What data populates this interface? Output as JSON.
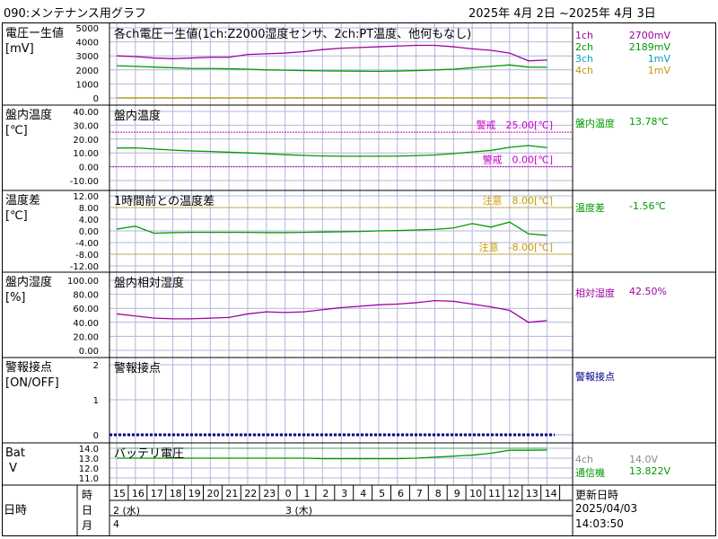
{
  "header": {
    "title": "090:メンテナンス用グラフ",
    "range": "2025年 4月 2日 ~2025年 4月 3日"
  },
  "time_axis": {
    "row_label": "時",
    "hours": [
      "15",
      "16",
      "17",
      "18",
      "19",
      "20",
      "21",
      "22",
      "23",
      "0",
      "1",
      "2",
      "3",
      "4",
      "5",
      "6",
      "7",
      "8",
      "9",
      "10",
      "11",
      "12",
      "13",
      "14"
    ],
    "day_row_label": "日",
    "days": [
      "2 (水)",
      "3 (木)"
    ],
    "month_row_label": "月",
    "month": "4",
    "row_title": "日時"
  },
  "updated": {
    "label": "更新日時",
    "date": "2025/04/03",
    "time": "14:03:50"
  },
  "colors": {
    "ch1": "#a000a0",
    "ch2": "#009a00",
    "ch3": "#00a0c8",
    "ch4": "#c89600",
    "warning": "#c800c8",
    "caution": "#c8a000",
    "contact": "#00008c",
    "grid": "#b4b4dc"
  },
  "chart_data": [
    {
      "type": "line",
      "id": "voltage",
      "panel_label": "電圧ー生値\n[mV]",
      "title": "各ch電圧ー生値(1ch:Z2000湿度センサ、2ch:PT温度、他何もなし)",
      "ylim": [
        0,
        5000
      ],
      "yticks": [
        "5000",
        "4000",
        "3000",
        "2000",
        "1000",
        "0"
      ],
      "series": [
        {
          "name": "1ch",
          "color_key": "ch1",
          "legend_value": "2700mV",
          "x": [
            0,
            1,
            2,
            3,
            4,
            5,
            6,
            7,
            8,
            9,
            10,
            11,
            12,
            13,
            14,
            15,
            16,
            17,
            18,
            19,
            20,
            21,
            22,
            23
          ],
          "values": [
            3000,
            2950,
            2850,
            2800,
            2850,
            2900,
            2900,
            3100,
            3150,
            3200,
            3300,
            3450,
            3550,
            3600,
            3650,
            3700,
            3750,
            3750,
            3650,
            3500,
            3400,
            3200,
            2650,
            2700
          ]
        },
        {
          "name": "2ch",
          "color_key": "ch2",
          "legend_value": "2189mV",
          "x": [
            0,
            1,
            2,
            3,
            4,
            5,
            6,
            7,
            8,
            9,
            10,
            11,
            12,
            13,
            14,
            15,
            16,
            17,
            18,
            19,
            20,
            21,
            22,
            23
          ],
          "values": [
            2300,
            2250,
            2200,
            2150,
            2100,
            2100,
            2080,
            2050,
            2000,
            1980,
            1950,
            1930,
            1920,
            1910,
            1900,
            1920,
            1950,
            2000,
            2050,
            2150,
            2250,
            2350,
            2200,
            2189
          ]
        },
        {
          "name": "3ch",
          "color_key": "ch3",
          "legend_value": "1mV",
          "x": [
            0,
            23
          ],
          "values": [
            1,
            1
          ]
        },
        {
          "name": "4ch",
          "color_key": "ch4",
          "legend_value": "1mV",
          "x": [
            0,
            23
          ],
          "values": [
            1,
            1
          ]
        }
      ]
    },
    {
      "type": "line",
      "id": "panel-temp",
      "panel_label": "盤内温度\n[℃]",
      "title": "盤内温度",
      "ylim": [
        -10,
        40
      ],
      "yticks": [
        "40.00",
        "30.00",
        "20.00",
        "10.00",
        "0.00",
        "-10.00"
      ],
      "thresholds": [
        {
          "value": 25.0,
          "label": "警戒　25.00[℃]",
          "color_key": "warning"
        },
        {
          "value": 0.0,
          "label": "警戒　0.00[℃]",
          "color_key": "warning"
        }
      ],
      "series": [
        {
          "name": "盤内温度",
          "color_key": "ch2",
          "legend_value": "13.78℃",
          "x": [
            0,
            1,
            2,
            3,
            4,
            5,
            6,
            7,
            8,
            9,
            10,
            11,
            12,
            13,
            14,
            15,
            16,
            17,
            18,
            19,
            20,
            21,
            22,
            23
          ],
          "values": [
            13.5,
            13.6,
            12.8,
            12.0,
            11.4,
            11.0,
            10.5,
            10.0,
            9.4,
            8.7,
            8.2,
            7.8,
            7.6,
            7.6,
            7.6,
            7.7,
            8.0,
            8.5,
            9.5,
            10.7,
            11.8,
            14.0,
            15.3,
            13.78
          ]
        }
      ]
    },
    {
      "type": "line",
      "id": "temp-diff",
      "panel_label": "温度差\n[℃]",
      "title": "1時間前との温度差",
      "ylim": [
        -12,
        12
      ],
      "yticks": [
        "12.00",
        "8.00",
        "4.00",
        "0.00",
        "-4.00",
        "-8.00",
        "-12.00"
      ],
      "thresholds": [
        {
          "value": 8.0,
          "label": "注意　8.00[℃]",
          "color_key": "caution"
        },
        {
          "value": -8.0,
          "label": "注意　-8.00[℃]",
          "color_key": "caution"
        }
      ],
      "series": [
        {
          "name": "温度差",
          "color_key": "ch2",
          "legend_value": "-1.56℃",
          "x": [
            0,
            1,
            2,
            3,
            4,
            5,
            6,
            7,
            8,
            9,
            10,
            11,
            12,
            13,
            14,
            15,
            16,
            17,
            18,
            19,
            20,
            21,
            22,
            23
          ],
          "values": [
            0.6,
            1.6,
            -0.8,
            -0.6,
            -0.5,
            -0.5,
            -0.5,
            -0.5,
            -0.6,
            -0.6,
            -0.5,
            -0.4,
            -0.3,
            -0.2,
            0.0,
            0.1,
            0.3,
            0.5,
            1.0,
            2.5,
            1.3,
            3.0,
            -1.0,
            -1.56
          ]
        }
      ]
    },
    {
      "type": "line",
      "id": "humidity",
      "panel_label": "盤内湿度\n[%]",
      "title": "盤内相対湿度",
      "ylim": [
        0,
        100
      ],
      "yticks": [
        "100.00",
        "80.00",
        "60.00",
        "40.00",
        "20.00",
        "0.00"
      ],
      "series": [
        {
          "name": "相対湿度",
          "color_key": "ch1",
          "legend_value": "42.50%",
          "x": [
            0,
            1,
            2,
            3,
            4,
            5,
            6,
            7,
            8,
            9,
            10,
            11,
            12,
            13,
            14,
            15,
            16,
            17,
            18,
            19,
            20,
            21,
            22,
            23
          ],
          "values": [
            52,
            49,
            46,
            45,
            45,
            46,
            47,
            52,
            55,
            54,
            55,
            58,
            61,
            63,
            65,
            66,
            68,
            71,
            70,
            66,
            62,
            57,
            40,
            42.5
          ]
        }
      ]
    },
    {
      "type": "line",
      "id": "alarm-contact",
      "panel_label": "警報接点\n[ON/OFF]",
      "title": "警報接点",
      "ylim": [
        0,
        2
      ],
      "yticks": [
        "2",
        "1",
        "0"
      ],
      "series": [
        {
          "name": "警報接点",
          "color_key": "contact",
          "legend_value": "",
          "x": [
            0,
            23
          ],
          "values": [
            0,
            0
          ]
        }
      ]
    },
    {
      "type": "line",
      "id": "battery",
      "panel_label": "Bat\n V",
      "title": "バッテリ電圧",
      "ylim": [
        11,
        14
      ],
      "yticks": [
        "14.0",
        "13.0",
        "12.0",
        "11.0"
      ],
      "series": [
        {
          "name": "4ch",
          "color_key": "ch2",
          "legend_value": "14.0V",
          "faded": true,
          "x": [
            0,
            23
          ],
          "values": [
            14.0,
            14.0
          ]
        },
        {
          "name": "通信機",
          "color_key": "ch2",
          "legend_value": "13.822V",
          "x": [
            0,
            1,
            2,
            3,
            4,
            5,
            6,
            7,
            8,
            9,
            10,
            11,
            12,
            13,
            14,
            15,
            16,
            17,
            18,
            19,
            20,
            21,
            22,
            23
          ],
          "values": [
            13.0,
            13.0,
            13.0,
            13.0,
            13.0,
            13.0,
            13.0,
            13.0,
            13.0,
            13.0,
            13.0,
            12.95,
            12.95,
            12.95,
            12.95,
            12.95,
            13.0,
            13.1,
            13.2,
            13.3,
            13.5,
            13.8,
            13.8,
            13.822
          ]
        }
      ]
    }
  ]
}
